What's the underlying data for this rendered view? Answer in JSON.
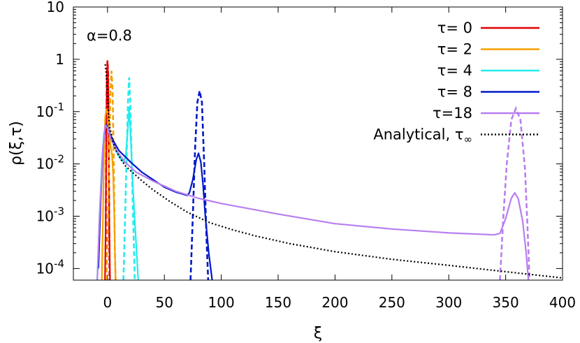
{
  "chart_data": {
    "type": "line",
    "annotation": "α=0.8",
    "xlabel": "ξ",
    "ylabel": "ρ(ξ,τ)",
    "xlim": [
      -30,
      400
    ],
    "ylim": [
      6e-05,
      10
    ],
    "yscale": "log",
    "grid": false,
    "legend_position": "top-right",
    "x_ticks": [
      {
        "value": 0,
        "label": "0"
      },
      {
        "value": 50,
        "label": "50"
      },
      {
        "value": 100,
        "label": "100"
      },
      {
        "value": 150,
        "label": "150"
      },
      {
        "value": 200,
        "label": "200"
      },
      {
        "value": 250,
        "label": "250"
      },
      {
        "value": 300,
        "label": "300"
      },
      {
        "value": 350,
        "label": "350"
      },
      {
        "value": 400,
        "label": "400"
      }
    ],
    "y_ticks": [
      {
        "value": 0.0001,
        "base": "10",
        "exp": "-4"
      },
      {
        "value": 0.001,
        "base": "10",
        "exp": "-3"
      },
      {
        "value": 0.01,
        "base": "10",
        "exp": "-2"
      },
      {
        "value": 0.1,
        "base": "10",
        "exp": "-1"
      },
      {
        "value": 1,
        "base": "1",
        "exp": ""
      },
      {
        "value": 10,
        "base": "10",
        "exp": ""
      }
    ],
    "series": [
      {
        "name": "τ= 0",
        "color": "#e00000",
        "solid": [
          [
            -2.2,
            6e-05
          ],
          [
            -1.5,
            0.001
          ],
          [
            -1,
            0.05
          ],
          [
            -0.5,
            0.5
          ],
          [
            0,
            0.9
          ],
          [
            0.5,
            0.5
          ],
          [
            1,
            0.05
          ],
          [
            1.5,
            0.001
          ],
          [
            2.2,
            6e-05
          ]
        ],
        "dashed": [
          [
            -1.8,
            6e-05
          ],
          [
            -1.2,
            0.01
          ],
          [
            -0.6,
            0.5
          ],
          [
            0,
            0.95
          ],
          [
            0.6,
            0.5
          ],
          [
            1.2,
            0.01
          ],
          [
            1.8,
            6e-05
          ]
        ]
      },
      {
        "name": "τ= 2",
        "color": "#f5a000",
        "solid": [
          [
            -5,
            6e-05
          ],
          [
            -4,
            0.001
          ],
          [
            -3,
            0.02
          ],
          [
            -2,
            0.08
          ],
          [
            -1,
            0.11
          ],
          [
            0,
            0.1
          ],
          [
            1,
            0.05
          ],
          [
            2,
            0.03
          ],
          [
            3,
            0.02
          ],
          [
            4,
            0.015
          ],
          [
            5,
            0.006
          ],
          [
            6,
            0.001
          ],
          [
            7,
            6e-05
          ]
        ],
        "dashed": [
          [
            -1,
            6e-05
          ],
          [
            0.5,
            0.001
          ],
          [
            1.5,
            0.02
          ],
          [
            2.5,
            0.2
          ],
          [
            3.5,
            0.6
          ],
          [
            4.5,
            0.25
          ],
          [
            5.5,
            0.01
          ],
          [
            6.5,
            0.0002
          ],
          [
            7.2,
            6e-05
          ]
        ]
      },
      {
        "name": "τ= 4",
        "color": "#22ecec",
        "solid": [
          [
            -9,
            6e-05
          ],
          [
            -7,
            0.001
          ],
          [
            -5,
            0.01
          ],
          [
            -3,
            0.04
          ],
          [
            -1,
            0.055
          ],
          [
            0,
            0.05
          ],
          [
            2,
            0.035
          ],
          [
            4,
            0.028
          ],
          [
            6,
            0.022
          ],
          [
            8,
            0.017
          ],
          [
            10,
            0.014
          ],
          [
            12,
            0.012
          ],
          [
            14,
            0.011
          ],
          [
            16,
            0.014
          ],
          [
            18,
            0.05
          ],
          [
            19,
            0.12
          ],
          [
            20,
            0.05
          ],
          [
            22,
            0.005
          ],
          [
            24,
            0.0008
          ],
          [
            27,
            6e-05
          ]
        ],
        "dashed": [
          [
            14,
            6e-05
          ],
          [
            15.5,
            0.001
          ],
          [
            17,
            0.02
          ],
          [
            18,
            0.15
          ],
          [
            19,
            0.45
          ],
          [
            20,
            0.15
          ],
          [
            21,
            0.02
          ],
          [
            22.5,
            0.001
          ],
          [
            24,
            6e-05
          ]
        ]
      },
      {
        "name": "τ= 8",
        "color": "#0018c8",
        "solid": [
          [
            -8,
            0.0001
          ],
          [
            -6,
            0.002
          ],
          [
            -4,
            0.02
          ],
          [
            -2,
            0.05
          ],
          [
            -1,
            0.056
          ],
          [
            0,
            0.052
          ],
          [
            2,
            0.038
          ],
          [
            5,
            0.028
          ],
          [
            10,
            0.018
          ],
          [
            20,
            0.011
          ],
          [
            30,
            0.007
          ],
          [
            40,
            0.005
          ],
          [
            50,
            0.0036
          ],
          [
            60,
            0.0029
          ],
          [
            70,
            0.0025
          ],
          [
            72,
            0.0028
          ],
          [
            75,
            0.005
          ],
          [
            78,
            0.012
          ],
          [
            80,
            0.016
          ],
          [
            82,
            0.011
          ],
          [
            84,
            0.004
          ],
          [
            86,
            0.001
          ],
          [
            89,
            0.0002
          ],
          [
            92,
            6e-05
          ]
        ],
        "dashed": [
          [
            73,
            6e-05
          ],
          [
            75,
            0.001
          ],
          [
            77,
            0.02
          ],
          [
            79,
            0.15
          ],
          [
            81,
            0.25
          ],
          [
            83,
            0.15
          ],
          [
            85,
            0.01
          ],
          [
            87,
            0.0004
          ],
          [
            88.5,
            6e-05
          ]
        ]
      },
      {
        "name": "τ=18",
        "color": "#b87ef0",
        "solid": [
          [
            -9,
            6e-05
          ],
          [
            -7,
            0.001
          ],
          [
            -4,
            0.02
          ],
          [
            -2,
            0.055
          ],
          [
            0,
            0.05
          ],
          [
            3,
            0.03
          ],
          [
            8,
            0.018
          ],
          [
            15,
            0.011
          ],
          [
            25,
            0.007
          ],
          [
            40,
            0.0047
          ],
          [
            60,
            0.003
          ],
          [
            80,
            0.0022
          ],
          [
            100,
            0.00175
          ],
          [
            150,
            0.0011
          ],
          [
            200,
            0.00072
          ],
          [
            250,
            0.00057
          ],
          [
            300,
            0.00048
          ],
          [
            340,
            0.00044
          ],
          [
            345,
            0.00047
          ],
          [
            350,
            0.0009
          ],
          [
            355,
            0.0022
          ],
          [
            358,
            0.0028
          ],
          [
            361,
            0.0022
          ],
          [
            365,
            0.0008
          ],
          [
            368,
            0.0002
          ],
          [
            370,
            6e-05
          ]
        ],
        "dashed": [
          [
            345,
            6e-05
          ],
          [
            348,
            0.001
          ],
          [
            351,
            0.01
          ],
          [
            355,
            0.07
          ],
          [
            359,
            0.115
          ],
          [
            363,
            0.07
          ],
          [
            367,
            0.008
          ],
          [
            369,
            0.0008
          ],
          [
            371,
            6e-05
          ]
        ]
      },
      {
        "name": "Analytical, τ∞",
        "color": "#000000",
        "dotted": true,
        "solid": [
          [
            -2,
            0.8
          ],
          [
            -1,
            0.5
          ],
          [
            0,
            0.2
          ],
          [
            1,
            0.08
          ],
          [
            2,
            0.05
          ],
          [
            3,
            0.04
          ],
          [
            5,
            0.025
          ],
          [
            8,
            0.017
          ],
          [
            12,
            0.012
          ],
          [
            16,
            0.009
          ],
          [
            20,
            0.0075
          ],
          [
            30,
            0.0048
          ],
          [
            40,
            0.0032
          ],
          [
            55,
            0.0019
          ],
          [
            70,
            0.0012
          ],
          [
            90,
            0.00075
          ],
          [
            110,
            0.00055
          ],
          [
            130,
            0.00042
          ],
          [
            160,
            0.0003
          ],
          [
            200,
            0.00021
          ],
          [
            250,
            0.00015
          ],
          [
            300,
            0.000115
          ],
          [
            350,
            8.7e-05
          ],
          [
            400,
            6.6e-05
          ]
        ]
      }
    ]
  }
}
